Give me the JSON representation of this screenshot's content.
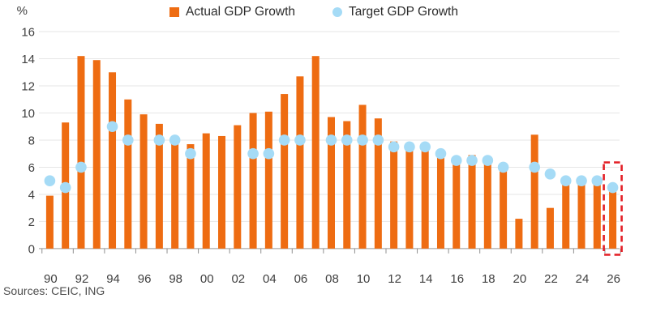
{
  "figure": {
    "percent_label": "%",
    "sources": "Sources: CEIC, ING"
  },
  "legend": [
    {
      "label": "Actual GDP Growth",
      "marker": "square-icon",
      "color": "#EE6C12"
    },
    {
      "label": "Target GDP Growth",
      "marker": "circle-icon",
      "color": "#A5DBF6"
    }
  ],
  "colors": {
    "bar_orange": "#EE6C12",
    "dot_blue": "#A5DBF6",
    "grid": "#E6E6E6",
    "axis_line": "#ABABAB",
    "tick_mark": "#8F8F8F",
    "axis_text": "#3F3F3F",
    "legend_text": "#2B2B2B",
    "forecast_box_red": "#E31E25",
    "background": "#FFFFFF"
  },
  "chart_data": {
    "type": "bar",
    "title": "",
    "ylabel": "%",
    "xlabel": "",
    "ylim": [
      0,
      16
    ],
    "ytick_step": 2,
    "yticks": [
      0,
      2,
      4,
      6,
      8,
      10,
      12,
      14,
      16
    ],
    "grid": true,
    "legend_position": "top-center",
    "x": [
      1990,
      1991,
      1992,
      1993,
      1994,
      1995,
      1996,
      1997,
      1998,
      1999,
      2000,
      2001,
      2002,
      2003,
      2004,
      2005,
      2006,
      2007,
      2008,
      2009,
      2010,
      2011,
      2012,
      2013,
      2014,
      2015,
      2016,
      2017,
      2018,
      2019,
      2020,
      2021,
      2022,
      2023,
      2024,
      2025,
      2026
    ],
    "x_tick_labels": [
      "90",
      "92",
      "94",
      "96",
      "98",
      "00",
      "02",
      "04",
      "06",
      "08",
      "10",
      "12",
      "14",
      "16",
      "18",
      "20",
      "22",
      "24",
      "26"
    ],
    "series": [
      {
        "name": "Actual GDP Growth",
        "type": "bar",
        "color": "#EE6C12",
        "values": [
          3.9,
          9.3,
          14.2,
          13.9,
          13.0,
          11.0,
          9.9,
          9.2,
          7.8,
          7.7,
          8.5,
          8.3,
          9.1,
          10.0,
          10.1,
          11.4,
          12.7,
          14.2,
          9.7,
          9.4,
          10.6,
          9.6,
          7.9,
          7.8,
          7.4,
          7.0,
          6.8,
          6.9,
          6.7,
          6.0,
          2.2,
          8.4,
          3.0,
          5.2,
          5.0,
          4.7,
          4.2
        ]
      },
      {
        "name": "Target GDP Growth",
        "type": "scatter",
        "color": "#A5DBF6",
        "values": [
          5.0,
          4.5,
          6.0,
          null,
          9.0,
          8.0,
          null,
          8.0,
          8.0,
          7.0,
          null,
          null,
          null,
          7.0,
          7.0,
          8.0,
          8.0,
          null,
          8.0,
          8.0,
          8.0,
          8.0,
          7.5,
          7.5,
          7.5,
          7.0,
          6.5,
          6.5,
          6.5,
          6.0,
          null,
          6.0,
          5.5,
          5.0,
          5.0,
          5.0,
          4.5
        ]
      }
    ],
    "annotations": [
      {
        "type": "dashed-box",
        "year": 2026,
        "meaning": "forecast-highlight",
        "color": "#E31E25"
      }
    ]
  }
}
